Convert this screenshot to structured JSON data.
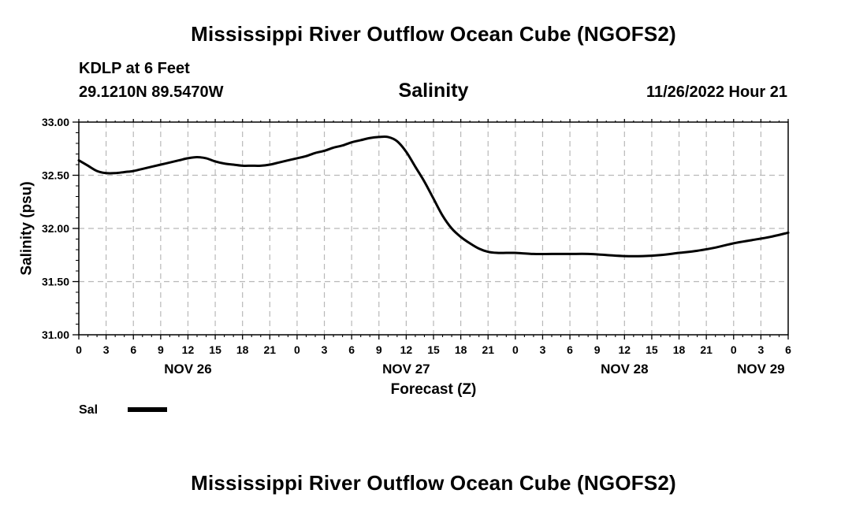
{
  "page": {
    "title_top": "Mississippi River Outflow Ocean Cube (NGOFS2)",
    "title_bottom": "Mississippi River Outflow Ocean Cube (NGOFS2)",
    "station_line": "KDLP at 6 Feet",
    "coords_line": "29.1210N  89.5470W",
    "timestamp": "11/26/2022 Hour 21"
  },
  "chart_data": {
    "type": "line",
    "title": "Salinity",
    "xlabel": "Forecast (Z)",
    "ylabel": "Salinity (psu)",
    "x_unit": "hours from Nov 26 00Z",
    "xlim": [
      0,
      78
    ],
    "ylim": [
      31.0,
      33.0
    ],
    "y_ticks": [
      {
        "value": 31.0,
        "label": "31.00"
      },
      {
        "value": 31.5,
        "label": "31.50"
      },
      {
        "value": 32.0,
        "label": "32.00"
      },
      {
        "value": 32.5,
        "label": "32.50"
      },
      {
        "value": 33.0,
        "label": "33.00"
      }
    ],
    "x_ticks": [
      {
        "value": 0,
        "label": "0"
      },
      {
        "value": 3,
        "label": "3"
      },
      {
        "value": 6,
        "label": "6"
      },
      {
        "value": 9,
        "label": "9"
      },
      {
        "value": 12,
        "label": "12"
      },
      {
        "value": 15,
        "label": "15"
      },
      {
        "value": 18,
        "label": "18"
      },
      {
        "value": 21,
        "label": "21"
      },
      {
        "value": 24,
        "label": "0"
      },
      {
        "value": 27,
        "label": "3"
      },
      {
        "value": 30,
        "label": "6"
      },
      {
        "value": 33,
        "label": "9"
      },
      {
        "value": 36,
        "label": "12"
      },
      {
        "value": 39,
        "label": "15"
      },
      {
        "value": 42,
        "label": "18"
      },
      {
        "value": 45,
        "label": "21"
      },
      {
        "value": 48,
        "label": "0"
      },
      {
        "value": 51,
        "label": "3"
      },
      {
        "value": 54,
        "label": "6"
      },
      {
        "value": 57,
        "label": "9"
      },
      {
        "value": 60,
        "label": "12"
      },
      {
        "value": 63,
        "label": "15"
      },
      {
        "value": 66,
        "label": "18"
      },
      {
        "value": 69,
        "label": "21"
      },
      {
        "value": 72,
        "label": "0"
      },
      {
        "value": 75,
        "label": "3"
      },
      {
        "value": 78,
        "label": "6"
      }
    ],
    "day_labels": [
      {
        "value": 12,
        "label": "NOV 26"
      },
      {
        "value": 36,
        "label": "NOV 27"
      },
      {
        "value": 60,
        "label": "NOV 28"
      },
      {
        "value": 75,
        "label": "NOV 29"
      }
    ],
    "grid": true,
    "legend": {
      "position": "bottom-left",
      "entries": [
        {
          "name": "Sal",
          "color": "#000000"
        }
      ]
    },
    "series": [
      {
        "name": "Sal",
        "color": "#000000",
        "x": [
          0,
          1,
          2,
          3,
          4,
          5,
          6,
          7,
          8,
          9,
          10,
          11,
          12,
          13,
          14,
          15,
          16,
          17,
          18,
          19,
          20,
          21,
          22,
          23,
          24,
          25,
          26,
          27,
          28,
          29,
          30,
          31,
          32,
          33,
          34,
          35,
          36,
          37,
          38,
          39,
          40,
          41,
          42,
          43,
          44,
          45,
          46,
          47,
          48,
          50,
          52,
          54,
          56,
          58,
          60,
          62,
          64,
          66,
          68,
          70,
          72,
          74,
          76,
          78
        ],
        "values": [
          32.64,
          32.59,
          32.54,
          32.52,
          32.52,
          32.53,
          32.54,
          32.56,
          32.58,
          32.6,
          32.62,
          32.64,
          32.66,
          32.67,
          32.66,
          32.63,
          32.61,
          32.6,
          32.59,
          32.59,
          32.59,
          32.6,
          32.62,
          32.64,
          32.66,
          32.68,
          32.71,
          32.73,
          32.76,
          32.78,
          32.81,
          32.83,
          32.85,
          32.86,
          32.86,
          32.82,
          32.72,
          32.58,
          32.44,
          32.28,
          32.12,
          32.0,
          31.92,
          31.86,
          31.81,
          31.78,
          31.77,
          31.77,
          31.77,
          31.76,
          31.76,
          31.76,
          31.76,
          31.75,
          31.74,
          31.74,
          31.75,
          31.77,
          31.79,
          31.82,
          31.86,
          31.89,
          31.92,
          31.96
        ]
      }
    ]
  }
}
